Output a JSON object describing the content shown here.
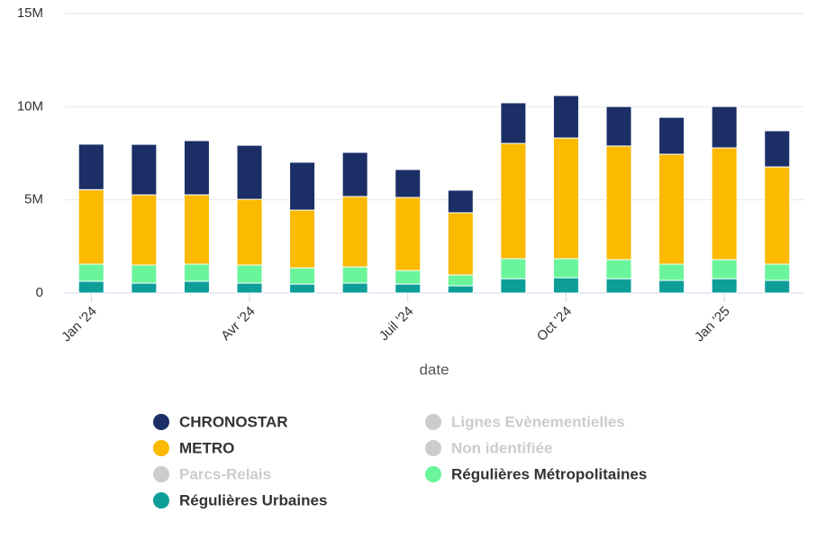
{
  "chart_data": {
    "type": "stacked_bar",
    "x_label": "date",
    "categories": [
      "Jan '24",
      null,
      null,
      "Avr '24",
      null,
      null,
      "Juil '24",
      null,
      null,
      "Oct '24",
      null,
      null,
      "Jan '25",
      null
    ],
    "series": [
      {
        "name": "CHRONOSTAR",
        "color": "#1b2f66",
        "visible": true,
        "values": [
          2440000,
          2710000,
          2910000,
          2900000,
          2570000,
          2370000,
          1500000,
          1210000,
          2180000,
          2280000,
          2120000,
          1980000,
          2220000,
          1940000
        ]
      },
      {
        "name": "Lignes Evènementielles",
        "color": "#cccccc",
        "visible": false,
        "values": [
          null,
          null,
          null,
          null,
          null,
          null,
          null,
          null,
          null,
          null,
          null,
          null,
          null,
          null
        ]
      },
      {
        "name": "METRO",
        "color": "#fbb900",
        "visible": true,
        "values": [
          4000000,
          3770000,
          3720000,
          3530000,
          3100000,
          3780000,
          3920000,
          3340000,
          6190000,
          6480000,
          6100000,
          5900000,
          6000000,
          5220000
        ]
      },
      {
        "name": "Non identifiée",
        "color": "#cccccc",
        "visible": false,
        "values": [
          null,
          null,
          null,
          null,
          null,
          null,
          null,
          null,
          null,
          null,
          null,
          null,
          null,
          null
        ]
      },
      {
        "name": "Parcs-Relais",
        "color": "#cccccc",
        "visible": false,
        "values": [
          null,
          null,
          null,
          null,
          null,
          null,
          null,
          null,
          null,
          null,
          null,
          null,
          null,
          null
        ]
      },
      {
        "name": "Régulières Métropolitaines",
        "color": "#6af59a",
        "visible": true,
        "values": [
          920000,
          970000,
          920000,
          970000,
          870000,
          870000,
          730000,
          580000,
          1070000,
          1020000,
          1020000,
          870000,
          1020000,
          870000
        ]
      },
      {
        "name": "Régulières Urbaines",
        "color": "#0d9e9a",
        "visible": true,
        "values": [
          630000,
          530000,
          630000,
          530000,
          480000,
          530000,
          480000,
          390000,
          770000,
          820000,
          770000,
          680000,
          770000,
          680000
        ]
      }
    ],
    "ylim": [
      0,
      15000000
    ],
    "yticks": [
      0,
      {
        "value": 5000000,
        "label": "5M"
      },
      {
        "value": 10000000,
        "label": "10M"
      },
      {
        "value": 15000000,
        "label": "15M"
      }
    ],
    "grid": true
  }
}
